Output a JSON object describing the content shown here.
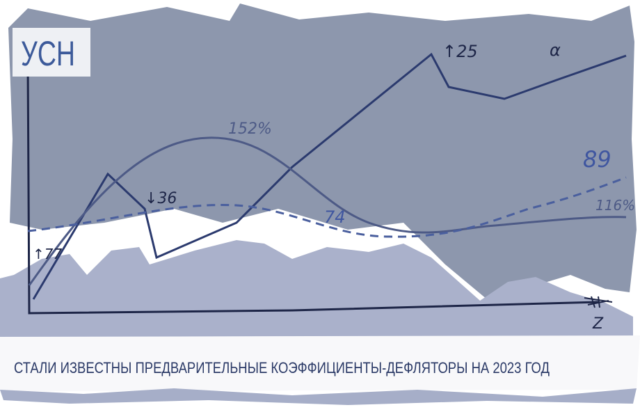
{
  "badge": {
    "text": "УСН"
  },
  "annotations": [
    "↑77",
    "↓36",
    "152%",
    "↑25",
    "α",
    "89",
    "74",
    "116%",
    "Z"
  ],
  "caption": "СТАЛИ ИЗВЕСТНЫ ПРЕДВАРИТЕЛЬНЫЕ КОЭФФИЦИЕНТЫ-ДЕФЛЯТОРЫ НА 2023 ГОД"
}
